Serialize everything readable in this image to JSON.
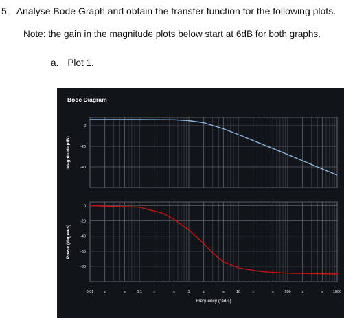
{
  "question": {
    "number": "5.",
    "text": "Analyse Bode Graph and obtain the transfer function for the following plots."
  },
  "note": "Note: the gain in the magnitude plots below start at 6dB for both graphs.",
  "subitem": {
    "letter": "a.",
    "text": "Plot 1."
  },
  "chart_data": {
    "type": "line",
    "title": "Bode Diagram",
    "xlabel": "Frequency (rad/s)",
    "x_scale": "log",
    "xlim": [
      0.01,
      1000
    ],
    "x_ticks": [
      "0.01",
      "2",
      "5",
      "0.1",
      "2",
      "5",
      "1",
      "2",
      "5",
      "10",
      "2",
      "5",
      "100",
      "2",
      "5",
      "1000"
    ],
    "x_tick_values": [
      0.01,
      0.02,
      0.05,
      0.1,
      0.2,
      0.5,
      1,
      2,
      5,
      10,
      20,
      50,
      100,
      200,
      500,
      1000
    ],
    "grid": true,
    "background": "#111418",
    "panels": [
      {
        "name": "magnitude",
        "ylabel": "Magnitude (dB)",
        "y_ticks": [
          "0",
          "-20",
          "-40"
        ],
        "y_tick_values": [
          0,
          -20,
          -40
        ],
        "ylim": [
          -60,
          8
        ],
        "color": "#8ab4e0",
        "x": [
          0.01,
          0.1,
          0.5,
          1,
          2,
          5,
          10,
          50,
          100,
          500,
          1000
        ],
        "y": [
          6,
          6,
          5.8,
          5.0,
          2.9,
          -3.0,
          -8.6,
          -22.1,
          -28.0,
          -42.0,
          -48.0
        ]
      },
      {
        "name": "phase",
        "ylabel": "Phase (degrees)",
        "y_ticks": [
          "0",
          "-20",
          "-40",
          "-60",
          "-80"
        ],
        "y_tick_values": [
          0,
          -20,
          -40,
          -60,
          -80
        ],
        "ylim": [
          -100,
          5
        ],
        "color": "#cc1111",
        "x": [
          0.01,
          0.1,
          0.3,
          0.5,
          1,
          2,
          3,
          5,
          10,
          30,
          100,
          1000
        ],
        "y": [
          0,
          -2,
          -10,
          -18,
          -32,
          -50,
          -62,
          -74,
          -82,
          -87,
          -89,
          -90
        ]
      }
    ]
  }
}
